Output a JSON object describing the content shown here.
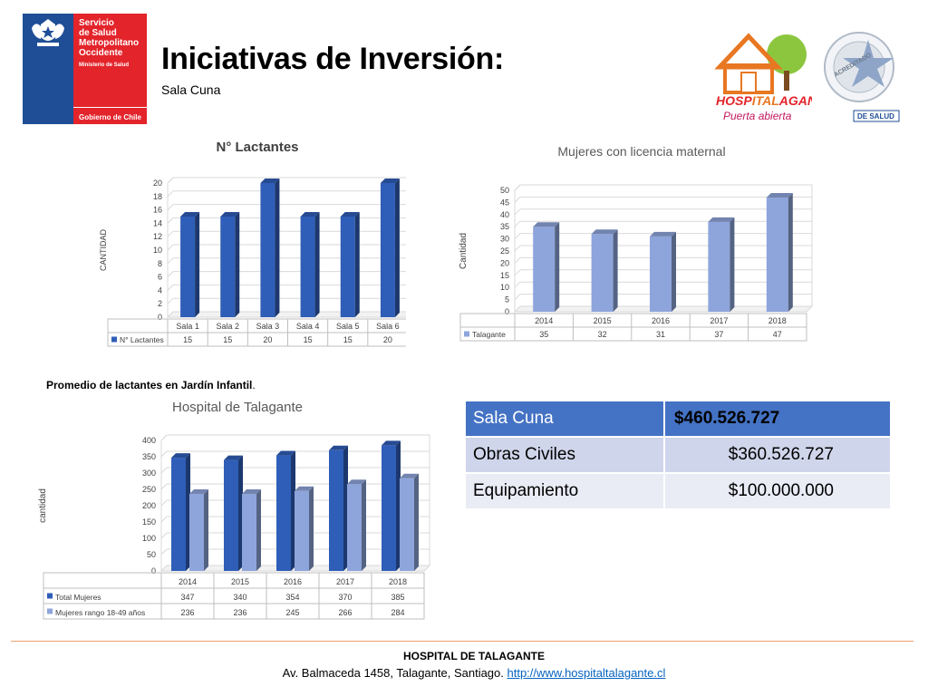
{
  "header": {
    "gov_logo": {
      "name_lines": [
        "Servicio",
        "de Salud",
        "Metropolitano",
        "Occidente"
      ],
      "ministry": "Ministerio de Salud",
      "footer": "Gobierno de Chile"
    },
    "title": "Iniciativas de Inversión:",
    "subtitle": "Sala Cuna",
    "hospital_logo": {
      "name_parts": [
        "HOSP",
        "ITAL",
        "AGANTE"
      ],
      "slogan": "Puerta abierta"
    },
    "accreditation_logo": {
      "text": "ACREDITADO",
      "org": "DE SALUD"
    }
  },
  "colors": {
    "bar_dark": "#2f5eb8",
    "bar_light": "#8ea5db",
    "header_blue": "#4472c4"
  },
  "charts": {
    "lactantes": {
      "chart_data": {
        "type": "bar",
        "title": "N° Lactantes",
        "ylabel": "CANTIDAD",
        "categories": [
          "Sala 1",
          "Sala 2",
          "Sala 3",
          "Sala 4",
          "Sala 5",
          "Sala 6"
        ],
        "series": [
          {
            "name": "N° Lactantes",
            "values": [
              15,
              15,
              20,
              15,
              15,
              20
            ]
          }
        ],
        "ylim": [
          0,
          20
        ],
        "yticks": [
          0,
          2,
          4,
          6,
          8,
          10,
          12,
          14,
          16,
          18,
          20
        ],
        "value_labels": [
          "15",
          "15",
          "20",
          "15",
          "15",
          "20"
        ]
      }
    },
    "licencia": {
      "chart_data": {
        "type": "bar",
        "title": "Mujeres con licencia maternal",
        "ylabel": "Cantidad",
        "categories": [
          "2014",
          "2015",
          "2016",
          "2017",
          "2018"
        ],
        "series": [
          {
            "name": "Talagante",
            "values": [
              35,
              32,
              31,
              37,
              47
            ]
          }
        ],
        "ylim": [
          0,
          50
        ],
        "yticks": [
          0,
          5,
          10,
          15,
          20,
          25,
          30,
          35,
          40,
          45,
          50
        ],
        "value_labels": [
          "35",
          "32",
          "31",
          "37",
          "47"
        ]
      }
    },
    "hospital": {
      "chart_data": {
        "type": "bar",
        "title": "Hospital de Talagante",
        "ylabel": "cantidad",
        "categories": [
          "2014",
          "2015",
          "2016",
          "2017",
          "2018"
        ],
        "series": [
          {
            "name": "Total Mujeres",
            "values": [
              347,
              340,
              354,
              370,
              385
            ],
            "value_labels": [
              "347",
              "340",
              "354",
              "370",
              "385"
            ]
          },
          {
            "name": "Mujeres rango 18-49 años",
            "values": [
              236,
              236,
              245,
              266,
              284
            ],
            "value_labels": [
              "236",
              "236",
              "245",
              "266",
              "284"
            ]
          }
        ],
        "ylim": [
          0,
          400
        ],
        "yticks": [
          0,
          50,
          100,
          150,
          200,
          250,
          300,
          350,
          400
        ]
      }
    }
  },
  "note": "Promedio de lactantes en Jardín Infantil",
  "note_period": ".",
  "cost_table": {
    "header": {
      "label": "Sala Cuna",
      "value": "$460.526.727"
    },
    "rows": [
      {
        "label": "Obras Civiles",
        "value": "$360.526.727"
      },
      {
        "label": "Equipamiento",
        "value": "$100.000.000"
      }
    ]
  },
  "footer": {
    "name": "HOSPITAL DE TALAGANTE",
    "address": "Av. Balmaceda 1458, Talagante, Santiago. ",
    "url": "http://www.hospitaltalagante.cl"
  }
}
